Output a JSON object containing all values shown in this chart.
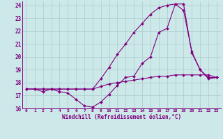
{
  "xlabel": "Windchill (Refroidissement éolien,°C)",
  "bg_color": "#cce8e8",
  "line_color": "#800080",
  "grid_color": "#aacccc",
  "xlim": [
    -0.5,
    23.5
  ],
  "ylim": [
    16,
    24.3
  ],
  "yticks": [
    16,
    17,
    18,
    19,
    20,
    21,
    22,
    23,
    24
  ],
  "xticks": [
    0,
    1,
    2,
    3,
    4,
    5,
    6,
    7,
    8,
    9,
    10,
    11,
    12,
    13,
    14,
    15,
    16,
    17,
    18,
    19,
    20,
    21,
    22,
    23
  ],
  "curve1_x": [
    0,
    1,
    2,
    3,
    4,
    5,
    6,
    7,
    8,
    9,
    10,
    11,
    12,
    13,
    14,
    15,
    16,
    17,
    18,
    19,
    20,
    21,
    22,
    23
  ],
  "curve1_y": [
    17.5,
    17.5,
    17.5,
    17.5,
    17.5,
    17.5,
    17.5,
    17.5,
    17.5,
    17.7,
    17.9,
    18.0,
    18.1,
    18.2,
    18.3,
    18.4,
    18.5,
    18.5,
    18.6,
    18.6,
    18.6,
    18.6,
    18.6,
    18.4
  ],
  "curve2_x": [
    0,
    1,
    2,
    3,
    4,
    5,
    6,
    7,
    8,
    9,
    10,
    11,
    12,
    13,
    14,
    15,
    16,
    17,
    18,
    19,
    20,
    21,
    22,
    23
  ],
  "curve2_y": [
    17.5,
    17.5,
    17.3,
    17.5,
    17.3,
    17.2,
    16.7,
    16.2,
    16.1,
    16.5,
    17.1,
    17.8,
    18.4,
    18.5,
    19.5,
    20.0,
    21.9,
    22.2,
    24.1,
    24.1,
    20.3,
    19.0,
    18.3,
    18.4
  ],
  "curve3_x": [
    0,
    1,
    2,
    3,
    4,
    5,
    6,
    7,
    8,
    9,
    10,
    11,
    12,
    13,
    14,
    15,
    16,
    17,
    18,
    19,
    20,
    21,
    22,
    23
  ],
  "curve3_y": [
    17.5,
    17.5,
    17.5,
    17.5,
    17.5,
    17.5,
    17.5,
    17.5,
    17.5,
    18.3,
    19.2,
    20.2,
    21.0,
    21.9,
    22.6,
    23.3,
    23.8,
    24.0,
    24.1,
    23.6,
    20.4,
    19.0,
    18.4,
    18.4
  ]
}
